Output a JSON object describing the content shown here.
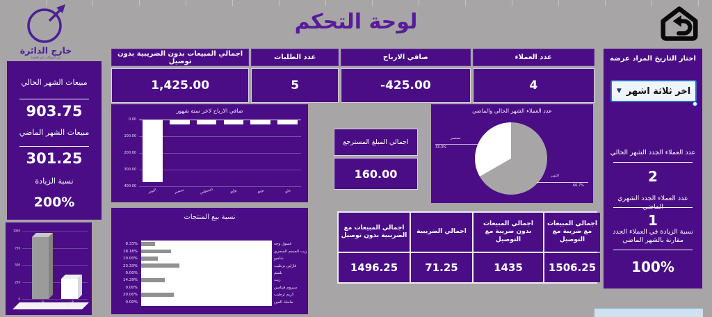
{
  "page": {
    "title": "لوحة التحكم"
  },
  "logo": {
    "name": "خارج الدائرة",
    "tagline": "غير المواكب  غير القمية"
  },
  "icons": {
    "home": "home-back-icon",
    "dropdown": "chevron-down-icon",
    "logo": "circle-arrow-logo-icon"
  },
  "colors": {
    "background": "#a8a5a6",
    "panel_purple": "#4a0d85",
    "title_purple": "#571c9c",
    "bar_white": "#ffffff",
    "bar_gray": "#909090",
    "pie_gray": "#a8a5a6",
    "dropdown_border": "#2f6fc1",
    "dropdown_bg": "#eff5fc",
    "blue_strip": "#cfe2f0"
  },
  "left_panel": {
    "items": [
      {
        "label": "مبيعات الشهر الحالي",
        "value": "903.75"
      },
      {
        "label": "مبيعات الشهر الماضي",
        "value": "301.25"
      },
      {
        "label": "نسبة الزيادة",
        "value": "200%"
      }
    ]
  },
  "kpi_row": {
    "cells": [
      {
        "label": "اجمالي المبيعات بدون الضريبية  بدون توصيل",
        "value": "1,425.00"
      },
      {
        "label": "عدد الطلبات",
        "value": "5"
      },
      {
        "label": "صافي الارباح",
        "value": "-425.00"
      },
      {
        "label": "عدد العملاء",
        "value": "4"
      }
    ]
  },
  "refund": {
    "label": "اجمالي المبلغ المسترجع",
    "value": "160.00"
  },
  "bottom_table": {
    "cells": [
      {
        "label": "اجمالي المبيعات مع الضريبية بدون توصيل",
        "value": "1496.25"
      },
      {
        "label": "اجمالي الضريبية",
        "value": "71.25"
      },
      {
        "label": "اجمالي المبيعات بدون ضريبة مع التوصيل",
        "value": "1435"
      },
      {
        "label": "اجمالي المبيعات مع ضريبة مع التوصيل",
        "value": "1506.25"
      }
    ]
  },
  "right_panel": {
    "header": "اختار التاريخ المراد عرضه",
    "dropdown_value": "اخر ثلاثة اشهر",
    "items": [
      {
        "label": "عدد العملاء الجدد الشهر الحالي",
        "value": "2"
      },
      {
        "label": "عدد العملاء الجدد الشهري الماضي",
        "value": "1"
      },
      {
        "label": "نسبة الزيادة في العملاء الجدد مقارنة بالشهر الماضي",
        "value": "100%"
      }
    ]
  },
  "chart_data": [
    {
      "id": "net_profit",
      "type": "bar",
      "title": "صافي الارباح لاخر ستة شهور",
      "categories": [
        "اكتوبر",
        "سبتمبر",
        "اغسطس",
        "يوليو",
        "يونيو",
        "مايو"
      ],
      "values": [
        -375,
        -30,
        -30,
        -30,
        -30,
        -30
      ],
      "yticks": [
        "0.00",
        "100.00",
        "200.00",
        "300.00",
        "400.00"
      ],
      "ylim": [
        0,
        -400
      ],
      "bar_color": "#ffffff",
      "grid": true,
      "legend": "none"
    },
    {
      "id": "customers_pie",
      "type": "pie",
      "title": "عدد العملاء الشهر الحالي والماضي",
      "slices": [
        {
          "label": "اكتوبر",
          "pct": 66.7,
          "pct_label": "66.7%",
          "color": "#a8a5a6"
        },
        {
          "label": "سبتمبر",
          "pct": 33.3,
          "pct_label": "33.3%",
          "color": "#ffffff"
        }
      ]
    },
    {
      "id": "product_sales",
      "type": "bar",
      "orientation": "horizontal",
      "title": "نسبة بيع المنتجات",
      "categories": [
        "غسول وجه",
        "زيت الجسم السحري",
        "شامبو",
        "فازلين ترطيب",
        "بلسم",
        "زيت",
        "سيروم فيتامين",
        "كريم ترطيب",
        "ماسك العين"
      ],
      "values": [
        8.33,
        18.18,
        10.0,
        23.33,
        0.0,
        14.29,
        0.0,
        20.0,
        0.0
      ],
      "value_labels": [
        "8.33%",
        "18.18%",
        "10.00%",
        "23.33%",
        "0.00%",
        "14.29%",
        "0.00%",
        "20.00%",
        "0.00%"
      ],
      "xlim": [
        0,
        80
      ],
      "bar_color": "#909090"
    },
    {
      "id": "sales_compare",
      "type": "bar",
      "title": "",
      "categories": [
        "الحالي",
        "الماضي"
      ],
      "values": [
        903.75,
        301.25
      ],
      "yticks": [
        "1000",
        "750",
        "500",
        "250",
        "0"
      ],
      "ylim": [
        0,
        1000
      ],
      "bar_colors": [
        "#9b9b9b",
        "#ffffff"
      ]
    }
  ]
}
